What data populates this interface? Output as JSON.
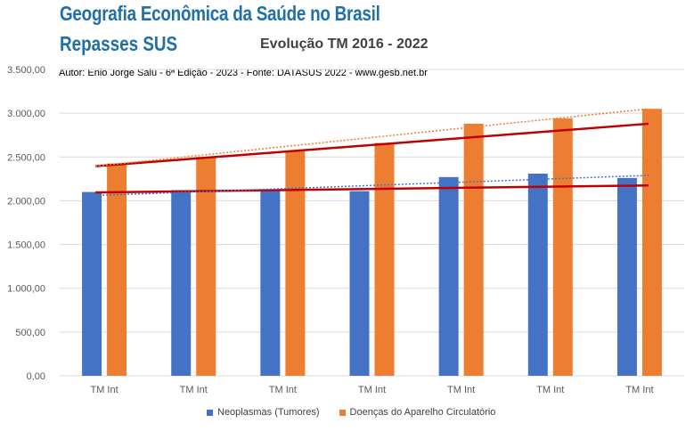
{
  "header": {
    "title": "Geografia Econômica da Saúde no Brasil",
    "subtitle": "Repasses SUS",
    "author": "Autor: Enio Jorge Salu - 6ª Edição - 2023 - Fonte: DATASUS 2022 - www.gesb.net.br"
  },
  "chart_data": {
    "type": "bar",
    "title": "Evolução TM 2016 - 2022",
    "xlabel": "",
    "ylabel": "",
    "categories": [
      "TM Int",
      "TM Int",
      "TM Int",
      "TM Int",
      "TM Int",
      "TM Int",
      "TM Int"
    ],
    "series": [
      {
        "name": "Neoplasmas (Tumores)",
        "color": "#4472c4",
        "values": [
          2100,
          2120,
          2125,
          2110,
          2270,
          2310,
          2260
        ]
      },
      {
        "name": "Doenças do Aparelho Circulatório",
        "color": "#ed7d31",
        "values": [
          2425,
          2500,
          2570,
          2660,
          2880,
          2940,
          3050
        ]
      }
    ],
    "trendlines": [
      {
        "series": "Neoplasmas (Tumores)",
        "style": "solid",
        "color": "#c00000",
        "start": 2095,
        "end": 2175
      },
      {
        "series": "Doenças do Aparelho Circulatório",
        "style": "solid",
        "color": "#c00000",
        "start": 2395,
        "end": 2880
      },
      {
        "series": "Neoplasmas (Tumores)",
        "style": "dotted",
        "color": "#4472c4",
        "start": 2060,
        "end": 2290
      },
      {
        "series": "Doenças do Aparelho Circulatório",
        "style": "dotted",
        "color": "#ed7d31",
        "start": 2395,
        "end": 3050
      }
    ],
    "ylim": [
      0,
      3500
    ],
    "yticks": [
      "0,00",
      "500,00",
      "1.000,00",
      "1.500,00",
      "2.000,00",
      "2.500,00",
      "3.000,00",
      "3.500,00"
    ],
    "grid": true,
    "legend": "bottom"
  }
}
